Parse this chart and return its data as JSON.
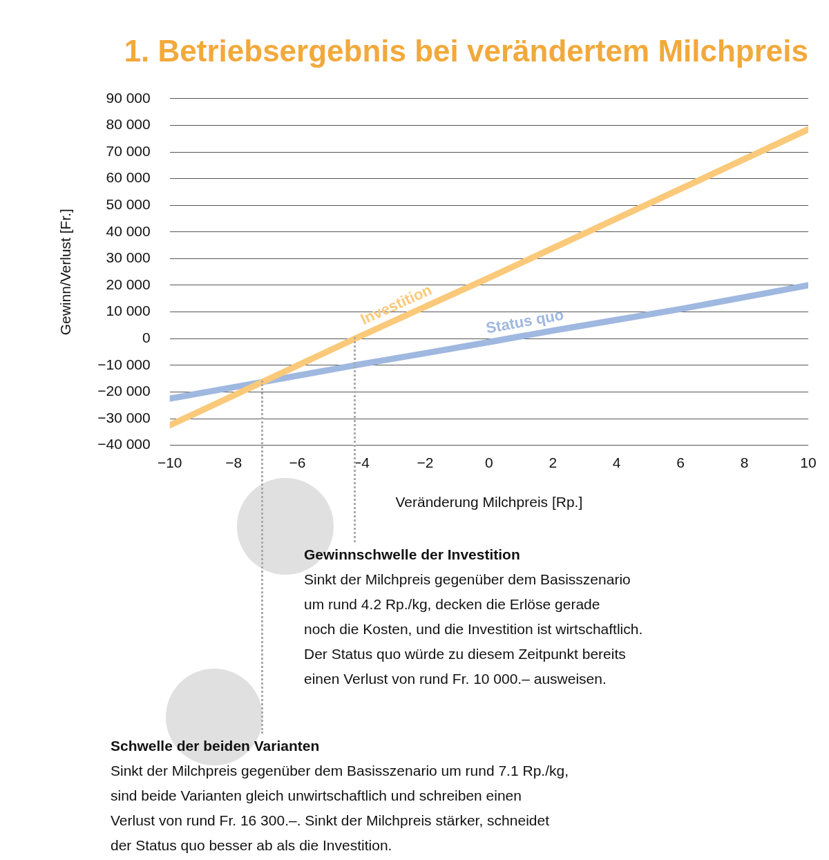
{
  "chart_data": {
    "type": "line",
    "title": "1. Betriebsergebnis bei verändertem Milchpreis",
    "xlabel": "Veränderung Milchpreis [Rp.]",
    "ylabel": "Gewinn/Verlust [Fr.]",
    "series": [
      {
        "name": "Investition",
        "color": "#fbc97a",
        "x": [
          -10,
          -7.1,
          -4.2,
          0,
          10
        ],
        "values": [
          -32500,
          -16300,
          0,
          22800,
          78500
        ]
      },
      {
        "name": "Status quo",
        "color": "#9fb8e0",
        "x": [
          -10,
          -7.1,
          -4.2,
          -2,
          0,
          2,
          6,
          10
        ],
        "values": [
          -22500,
          -16300,
          -10000,
          -5500,
          -1300,
          3000,
          11100,
          20000
        ]
      }
    ],
    "xlim": [
      -10,
      10
    ],
    "xticks": [
      {
        "value": -10,
        "label": "−10"
      },
      {
        "value": -8,
        "label": "−8"
      },
      {
        "value": -6,
        "label": "−6"
      },
      {
        "value": -4,
        "label": "−4"
      },
      {
        "value": -2,
        "label": "−2"
      },
      0,
      2,
      4,
      6,
      8,
      10
    ],
    "ylim": [
      -40000,
      90000
    ],
    "yticks": [
      {
        "value": -40000,
        "label": "−40 000"
      },
      {
        "value": -30000,
        "label": "−30 000"
      },
      {
        "value": -20000,
        "label": "−20 000"
      },
      {
        "value": -10000,
        "label": "−10 000"
      },
      0,
      {
        "value": 10000,
        "label": "10 000"
      },
      {
        "value": 20000,
        "label": "20 000"
      },
      {
        "value": 30000,
        "label": "30 000"
      },
      {
        "value": 40000,
        "label": "40 000"
      },
      {
        "value": 50000,
        "label": "50 000"
      },
      {
        "value": 60000,
        "label": "60 000"
      },
      {
        "value": 70000,
        "label": "70 000"
      },
      {
        "value": 80000,
        "label": "80 000"
      },
      {
        "value": 90000,
        "label": "90 000"
      }
    ],
    "grid": "y",
    "legend": false,
    "marker": "none",
    "line_style": "solid",
    "annotations": [
      {
        "text": "Gewinnschwelle der Investition\nSinkt der Milchpreis gegenüber dem Basisszenario\num rund 4.2 Rp./kg, decken die Erlöse gerade\nnoch die Kosten, und die Investition ist wirtschaftlich.\nDer Status quo würde zu diesem Zeitpunkt bereits\neinen Verlust von rund Fr. 10 000.– ausweisen.",
        "x": -4.2,
        "y": 0
      },
      {
        "text": "Schwelle der beiden Varianten\nSinkt der Milchpreis gegenüber dem Basisszenario um rund 7.1 Rp./kg,\nsind beide Varianten gleich unwirtschaftlich und schreiben einen\nVerlust von rund Fr. 16 300.–. Sinkt der Milchpreis stärker, schneidet\nder Status quo besser ab als die Investition.",
        "x": -7.1,
        "y": -16300
      }
    ]
  }
}
